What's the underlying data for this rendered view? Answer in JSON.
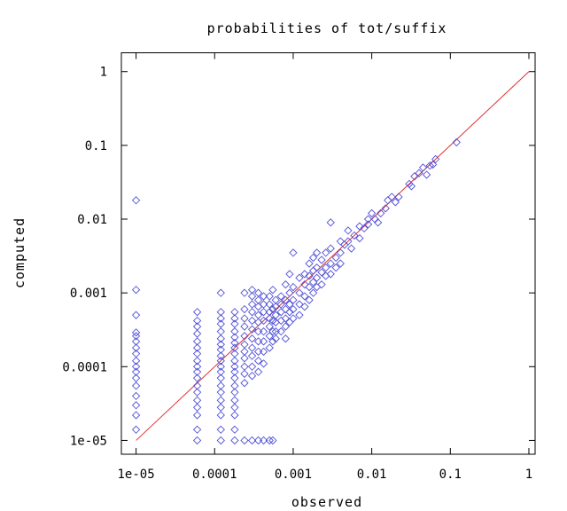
{
  "chart_data": {
    "type": "scatter",
    "title": "probabilities of tot/suffix",
    "xlabel": "observed",
    "ylabel": "computed",
    "x_scale": "log",
    "y_scale": "log",
    "xlim": [
      6.5e-06,
      1.2
    ],
    "ylim": [
      6.5e-06,
      1.8
    ],
    "x_ticks": [
      {
        "value": 1e-05,
        "label": "1e-05"
      },
      {
        "value": 0.0001,
        "label": "0.0001"
      },
      {
        "value": 0.001,
        "label": "0.001"
      },
      {
        "value": 0.01,
        "label": "0.01"
      },
      {
        "value": 0.1,
        "label": "0.1"
      },
      {
        "value": 1,
        "label": "1"
      }
    ],
    "y_ticks": [
      {
        "value": 1e-05,
        "label": "1e-05"
      },
      {
        "value": 0.0001,
        "label": "0.0001"
      },
      {
        "value": 0.001,
        "label": "0.001"
      },
      {
        "value": 0.01,
        "label": "0.01"
      },
      {
        "value": 0.1,
        "label": "0.1"
      },
      {
        "value": 1,
        "label": "1"
      }
    ],
    "grid": false,
    "colors": {
      "points": "#5050d8",
      "reference_line": "#e03030",
      "frame": "#000000"
    },
    "reference_line": {
      "from": [
        1e-05,
        1e-05
      ],
      "to": [
        1,
        1
      ]
    },
    "points": [
      [
        1e-05,
        0.018
      ],
      [
        1e-05,
        0.0011
      ],
      [
        1e-05,
        0.0005
      ],
      [
        1e-05,
        0.00029
      ],
      [
        1e-05,
        0.00026
      ],
      [
        1e-05,
        0.00022
      ],
      [
        1e-05,
        0.00018
      ],
      [
        1e-05,
        0.00015
      ],
      [
        1e-05,
        0.00012
      ],
      [
        1e-05,
        0.0001
      ],
      [
        1e-05,
        8.5e-05
      ],
      [
        1e-05,
        7e-05
      ],
      [
        1e-05,
        5.5e-05
      ],
      [
        1e-05,
        4e-05
      ],
      [
        1e-05,
        3e-05
      ],
      [
        1e-05,
        2.2e-05
      ],
      [
        1e-05,
        1.4e-05
      ],
      [
        6e-05,
        0.00055
      ],
      [
        6e-05,
        0.00042
      ],
      [
        6e-05,
        0.00035
      ],
      [
        6e-05,
        0.00028
      ],
      [
        6e-05,
        0.00022
      ],
      [
        6e-05,
        0.00018
      ],
      [
        6e-05,
        0.00015
      ],
      [
        6e-05,
        0.00012
      ],
      [
        6e-05,
        0.0001
      ],
      [
        6e-05,
        8.5e-05
      ],
      [
        6e-05,
        7e-05
      ],
      [
        6e-05,
        5.5e-05
      ],
      [
        6e-05,
        4.5e-05
      ],
      [
        6e-05,
        3.5e-05
      ],
      [
        6e-05,
        2.8e-05
      ],
      [
        6e-05,
        2.2e-05
      ],
      [
        6e-05,
        1.4e-05
      ],
      [
        6e-05,
        1e-05
      ],
      [
        0.00012,
        0.001
      ],
      [
        0.00012,
        0.00055
      ],
      [
        0.00012,
        0.00045
      ],
      [
        0.00012,
        0.00038
      ],
      [
        0.00012,
        0.0003
      ],
      [
        0.00012,
        0.00024
      ],
      [
        0.00012,
        0.0002
      ],
      [
        0.00012,
        0.00017
      ],
      [
        0.00012,
        0.00014
      ],
      [
        0.00012,
        0.00012
      ],
      [
        0.00012,
        0.0001
      ],
      [
        0.00012,
        8.5e-05
      ],
      [
        0.00012,
        7e-05
      ],
      [
        0.00012,
        5.5e-05
      ],
      [
        0.00012,
        4.5e-05
      ],
      [
        0.00012,
        3.5e-05
      ],
      [
        0.00012,
        2.8e-05
      ],
      [
        0.00012,
        2.2e-05
      ],
      [
        0.00012,
        1.4e-05
      ],
      [
        0.00012,
        1e-05
      ],
      [
        0.00018,
        0.00055
      ],
      [
        0.00018,
        0.00045
      ],
      [
        0.00018,
        0.00038
      ],
      [
        0.00018,
        0.0003
      ],
      [
        0.00018,
        0.00025
      ],
      [
        0.00018,
        0.00021
      ],
      [
        0.00018,
        0.00018
      ],
      [
        0.00018,
        0.00015
      ],
      [
        0.00018,
        0.00012
      ],
      [
        0.00018,
        0.0001
      ],
      [
        0.00018,
        8.5e-05
      ],
      [
        0.00018,
        7e-05
      ],
      [
        0.00018,
        5.5e-05
      ],
      [
        0.00018,
        4.5e-05
      ],
      [
        0.00018,
        3.5e-05
      ],
      [
        0.00018,
        2.8e-05
      ],
      [
        0.00018,
        2.2e-05
      ],
      [
        0.00018,
        1.4e-05
      ],
      [
        0.00018,
        1e-05
      ],
      [
        0.00024,
        0.001
      ],
      [
        0.00024,
        0.0006
      ],
      [
        0.00024,
        0.00045
      ],
      [
        0.00024,
        0.00035
      ],
      [
        0.00024,
        0.00026
      ],
      [
        0.00024,
        0.0002
      ],
      [
        0.00024,
        0.00016
      ],
      [
        0.00024,
        0.00013
      ],
      [
        0.00024,
        0.0001
      ],
      [
        0.00024,
        8e-05
      ],
      [
        0.00024,
        6e-05
      ],
      [
        0.00024,
        1e-05
      ],
      [
        0.0003,
        0.0011
      ],
      [
        0.0003,
        0.0009
      ],
      [
        0.0003,
        0.0007
      ],
      [
        0.0003,
        0.00055
      ],
      [
        0.0003,
        0.00042
      ],
      [
        0.0003,
        0.00032
      ],
      [
        0.0003,
        0.00024
      ],
      [
        0.0003,
        0.00018
      ],
      [
        0.0003,
        0.00014
      ],
      [
        0.0003,
        0.0001
      ],
      [
        0.0003,
        7.5e-05
      ],
      [
        0.0003,
        1e-05
      ],
      [
        0.00036,
        0.001
      ],
      [
        0.00036,
        0.0008
      ],
      [
        0.00036,
        0.00065
      ],
      [
        0.00036,
        0.0005
      ],
      [
        0.00036,
        0.0004
      ],
      [
        0.00036,
        0.0003
      ],
      [
        0.00036,
        0.00022
      ],
      [
        0.00036,
        0.00016
      ],
      [
        0.00036,
        0.00012
      ],
      [
        0.00036,
        8.5e-05
      ],
      [
        0.00036,
        1e-05
      ],
      [
        0.00042,
        0.0009
      ],
      [
        0.00042,
        0.0007
      ],
      [
        0.00042,
        0.00055
      ],
      [
        0.00042,
        0.00042
      ],
      [
        0.00042,
        0.0003
      ],
      [
        0.00042,
        0.00022
      ],
      [
        0.00042,
        0.00016
      ],
      [
        0.00042,
        0.00011
      ],
      [
        0.00042,
        1e-05
      ],
      [
        0.0005,
        0.0009
      ],
      [
        0.0005,
        0.0007
      ],
      [
        0.0005,
        0.00055
      ],
      [
        0.0005,
        0.00045
      ],
      [
        0.0005,
        0.00035
      ],
      [
        0.0005,
        0.00026
      ],
      [
        0.0005,
        0.00018
      ],
      [
        0.0005,
        1e-05
      ],
      [
        0.00055,
        0.0011
      ],
      [
        0.00055,
        0.0006
      ],
      [
        0.00055,
        0.00042
      ],
      [
        0.00055,
        0.0003
      ],
      [
        0.00055,
        0.00022
      ],
      [
        0.00055,
        1e-05
      ],
      [
        0.0006,
        0.0008
      ],
      [
        0.0006,
        0.00065
      ],
      [
        0.0006,
        0.0005
      ],
      [
        0.0006,
        0.0004
      ],
      [
        0.0006,
        0.0003
      ],
      [
        0.0006,
        0.00024
      ],
      [
        0.0007,
        0.0009
      ],
      [
        0.0007,
        0.0007
      ],
      [
        0.0007,
        0.00055
      ],
      [
        0.0007,
        0.00042
      ],
      [
        0.0007,
        0.0003
      ],
      [
        0.0008,
        0.0013
      ],
      [
        0.0008,
        0.0008
      ],
      [
        0.0008,
        0.0006
      ],
      [
        0.0008,
        0.00045
      ],
      [
        0.0008,
        0.00035
      ],
      [
        0.0008,
        0.00024
      ],
      [
        0.0009,
        0.0018
      ],
      [
        0.0009,
        0.001
      ],
      [
        0.0009,
        0.0007
      ],
      [
        0.0009,
        0.00055
      ],
      [
        0.0009,
        0.0004
      ],
      [
        0.001,
        0.0035
      ],
      [
        0.001,
        0.0012
      ],
      [
        0.001,
        0.0008
      ],
      [
        0.001,
        0.0006
      ],
      [
        0.001,
        0.00045
      ],
      [
        0.0012,
        0.0016
      ],
      [
        0.0012,
        0.001
      ],
      [
        0.0012,
        0.0007
      ],
      [
        0.0012,
        0.0005
      ],
      [
        0.0014,
        0.0018
      ],
      [
        0.0014,
        0.0013
      ],
      [
        0.0014,
        0.0009
      ],
      [
        0.0014,
        0.00065
      ],
      [
        0.0016,
        0.0025
      ],
      [
        0.0016,
        0.0017
      ],
      [
        0.0016,
        0.0012
      ],
      [
        0.0016,
        0.0008
      ],
      [
        0.0018,
        0.003
      ],
      [
        0.0018,
        0.002
      ],
      [
        0.0018,
        0.0014
      ],
      [
        0.0018,
        0.001
      ],
      [
        0.002,
        0.0035
      ],
      [
        0.002,
        0.0022
      ],
      [
        0.002,
        0.0016
      ],
      [
        0.002,
        0.0012
      ],
      [
        0.0023,
        0.0028
      ],
      [
        0.0023,
        0.0019
      ],
      [
        0.0023,
        0.0013
      ],
      [
        0.0026,
        0.0035
      ],
      [
        0.0026,
        0.0022
      ],
      [
        0.0026,
        0.0017
      ],
      [
        0.003,
        0.009
      ],
      [
        0.003,
        0.004
      ],
      [
        0.003,
        0.0025
      ],
      [
        0.003,
        0.0018
      ],
      [
        0.0035,
        0.003
      ],
      [
        0.0035,
        0.0022
      ],
      [
        0.004,
        0.005
      ],
      [
        0.004,
        0.0035
      ],
      [
        0.004,
        0.0025
      ],
      [
        0.0045,
        0.0045
      ],
      [
        0.005,
        0.007
      ],
      [
        0.005,
        0.005
      ],
      [
        0.0055,
        0.004
      ],
      [
        0.006,
        0.006
      ],
      [
        0.007,
        0.008
      ],
      [
        0.007,
        0.0055
      ],
      [
        0.008,
        0.0075
      ],
      [
        0.009,
        0.01
      ],
      [
        0.009,
        0.0085
      ],
      [
        0.01,
        0.012
      ],
      [
        0.011,
        0.01
      ],
      [
        0.012,
        0.009
      ],
      [
        0.013,
        0.012
      ],
      [
        0.015,
        0.014
      ],
      [
        0.016,
        0.018
      ],
      [
        0.018,
        0.02
      ],
      [
        0.02,
        0.017
      ],
      [
        0.022,
        0.02
      ],
      [
        0.03,
        0.03
      ],
      [
        0.032,
        0.028
      ],
      [
        0.035,
        0.038
      ],
      [
        0.04,
        0.042
      ],
      [
        0.045,
        0.05
      ],
      [
        0.05,
        0.04
      ],
      [
        0.055,
        0.053
      ],
      [
        0.06,
        0.055
      ],
      [
        0.065,
        0.065
      ],
      [
        0.12,
        0.11
      ]
    ]
  }
}
